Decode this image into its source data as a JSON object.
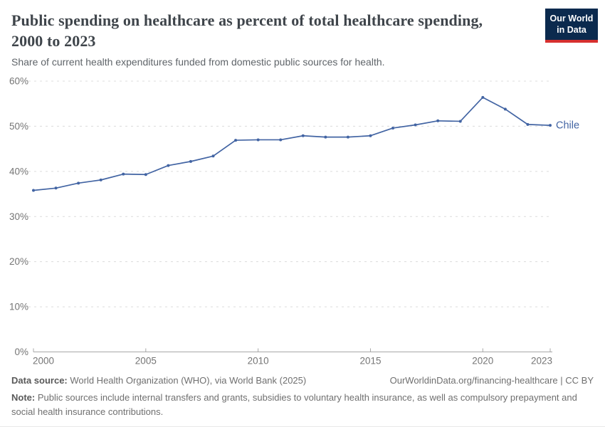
{
  "header": {
    "title": "Public spending on healthcare as percent of total healthcare spending, 2000 to 2023",
    "subtitle": "Share of current health expenditures funded from domestic public sources for health.",
    "logo_line1": "Our World",
    "logo_line2": "in Data"
  },
  "chart_data": {
    "type": "line",
    "title": "Public spending on healthcare as percent of total healthcare spending, 2000 to 2023",
    "xlabel": "",
    "ylabel": "",
    "xlim": [
      2000,
      2023
    ],
    "ylim": [
      0,
      60
    ],
    "xticks": [
      2000,
      2005,
      2010,
      2015,
      2020,
      2023
    ],
    "yticks": [
      0,
      10,
      20,
      30,
      40,
      50,
      60
    ],
    "ytick_suffix": "%",
    "grid": "horizontal-dashed",
    "legend_position": "end-of-line",
    "x": [
      2000,
      2001,
      2002,
      2003,
      2004,
      2005,
      2006,
      2007,
      2008,
      2009,
      2010,
      2011,
      2012,
      2013,
      2014,
      2015,
      2016,
      2017,
      2018,
      2019,
      2020,
      2021,
      2022,
      2023
    ],
    "series": [
      {
        "name": "Chile",
        "color": "#4264a3",
        "values": [
          35.8,
          36.3,
          37.4,
          38.1,
          39.4,
          39.3,
          41.3,
          42.2,
          43.4,
          46.9,
          47.0,
          47.0,
          47.9,
          47.6,
          47.6,
          47.9,
          49.6,
          50.3,
          51.2,
          51.1,
          56.4,
          53.8,
          50.4,
          50.2
        ]
      }
    ]
  },
  "footer": {
    "datasource_label": "Data source:",
    "datasource_text": " World Health Organization (WHO), via World Bank (2025)",
    "link_text": "OurWorldinData.org/financing-healthcare | CC BY",
    "note_label": "Note:",
    "note_text": " Public sources include internal transfers and grants, subsidies to voluntary health insurance, as well as compulsory prepayment and social health insurance contributions."
  },
  "colors": {
    "line": "#4264a3",
    "grid": "#dcdcdc",
    "axis": "#a8a8a8",
    "axis_label": "#757575",
    "logo_navy": "#0b2a4e",
    "logo_red": "#d7302f"
  }
}
